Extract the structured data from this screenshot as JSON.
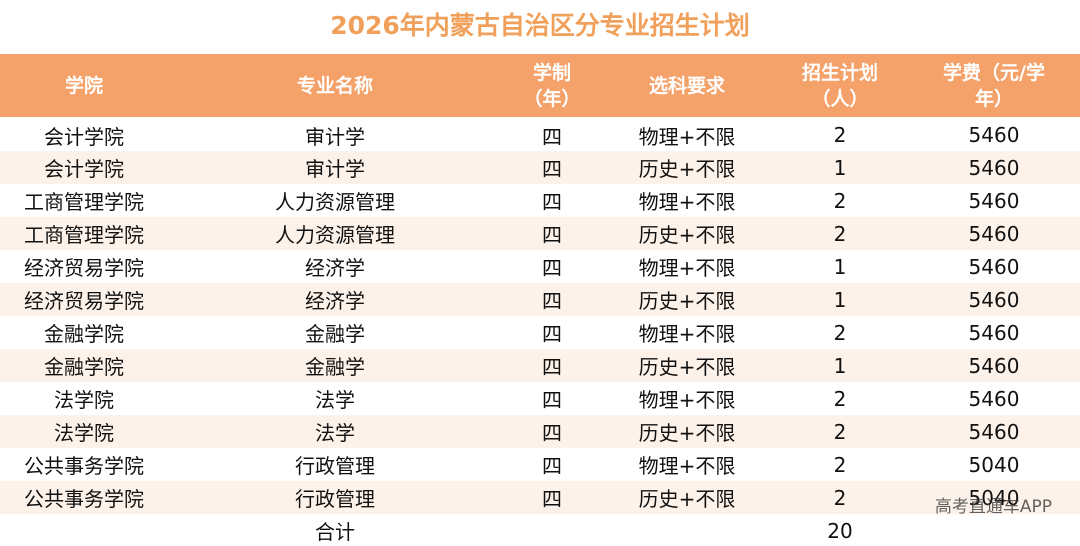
{
  "title": "2026年内蒙古自治区分专业招生计划",
  "headers": [
    "学院",
    "专业名称",
    "学制\n（年）",
    "选科要求",
    "招生计划\n（人）",
    "学费（元/学\n年）"
  ],
  "rows": [
    [
      "会计学院",
      "审计学",
      "四",
      "物理+不限",
      "2",
      "5460"
    ],
    [
      "会计学院",
      "审计学",
      "四",
      "历史+不限",
      "1",
      "5460"
    ],
    [
      "工商管理学院",
      "人力资源管理",
      "四",
      "物理+不限",
      "2",
      "5460"
    ],
    [
      "工商管理学院",
      "人力资源管理",
      "四",
      "历史+不限",
      "2",
      "5460"
    ],
    [
      "经济贸易学院",
      "经济学",
      "四",
      "物理+不限",
      "1",
      "5460"
    ],
    [
      "经济贸易学院",
      "经济学",
      "四",
      "历史+不限",
      "1",
      "5460"
    ],
    [
      "金融学院",
      "金融学",
      "四",
      "物理+不限",
      "2",
      "5460"
    ],
    [
      "金融学院",
      "金融学",
      "四",
      "历史+不限",
      "1",
      "5460"
    ],
    [
      "法学院",
      "法学",
      "四",
      "物理+不限",
      "2",
      "5460"
    ],
    [
      "法学院",
      "法学",
      "四",
      "历史+不限",
      "2",
      "5460"
    ],
    [
      "公共事务学院",
      "行政管理",
      "四",
      "物理+不限",
      "2",
      "5040"
    ],
    [
      "公共事务学院",
      "行政管理",
      "四",
      "历史+不限",
      "2",
      "5040"
    ]
  ],
  "total": {
    "label": "合计",
    "value": "20"
  },
  "watermark": "高考直通车APP",
  "colors": {
    "header_bg": "#f4a26a",
    "title": "#f0a05a",
    "stripe": "#fdf2ea"
  }
}
